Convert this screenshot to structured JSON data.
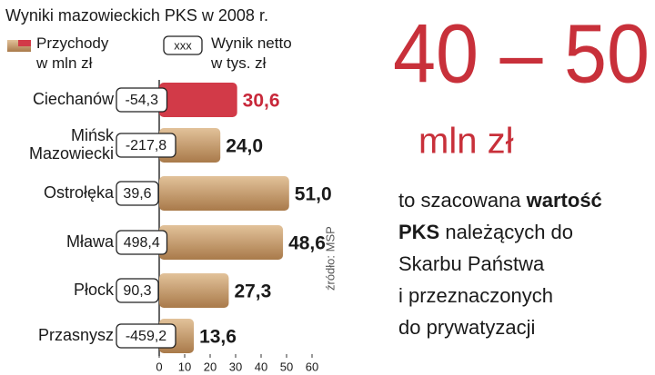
{
  "chart_data": {
    "type": "bar",
    "orientation": "horizontal",
    "title": "Wyniki mazowieckich PKS w 2008 r.",
    "categories": [
      "Ciechanów",
      "Mińsk Mazowiecki",
      "Ostrołęka",
      "Mława",
      "Płock",
      "Przasnysz"
    ],
    "series": [
      {
        "name": "Przychody w mln zł",
        "colors": [
          "#d23a48",
          "#c79a68",
          "#c79a68",
          "#c79a68",
          "#c79a68",
          "#c79a68"
        ],
        "label_colors": [
          "#c8283a",
          "#1a1a1a",
          "#1a1a1a",
          "#1a1a1a",
          "#1a1a1a",
          "#1a1a1a"
        ],
        "values": [
          30.6,
          24.0,
          51.0,
          48.6,
          27.3,
          13.6
        ],
        "value_labels": [
          "30,6",
          "24,0",
          "51,0",
          "48,6",
          "27,3",
          "13,6"
        ]
      },
      {
        "name": "Wynik netto w tys. zł",
        "legend_sample": "xxx",
        "values": [
          -54.3,
          -217.8,
          39.6,
          498.4,
          90.3,
          -459.2
        ],
        "value_labels": [
          "-54,3",
          "-217,8",
          "39,6",
          "498,4",
          "90,3",
          "-459,2"
        ]
      }
    ],
    "xlim": [
      0,
      60
    ],
    "xticks": [
      0,
      10,
      20,
      30,
      40,
      50,
      60
    ],
    "source": "źródło: MSP",
    "headline": "40 – 50",
    "headline_unit": "mln zł",
    "text_lines": [
      [
        {
          "text": "to szacowana "
        },
        {
          "text": "wartość",
          "bold": true
        }
      ],
      [
        {
          "text": "PKS",
          "bold": true
        },
        {
          "text": " należących do"
        }
      ],
      [
        {
          "text": "Skarbu Państwa"
        }
      ],
      [
        {
          "text": "i przeznaczonych"
        }
      ],
      [
        {
          "text": "do prywatyzacji"
        }
      ]
    ]
  }
}
